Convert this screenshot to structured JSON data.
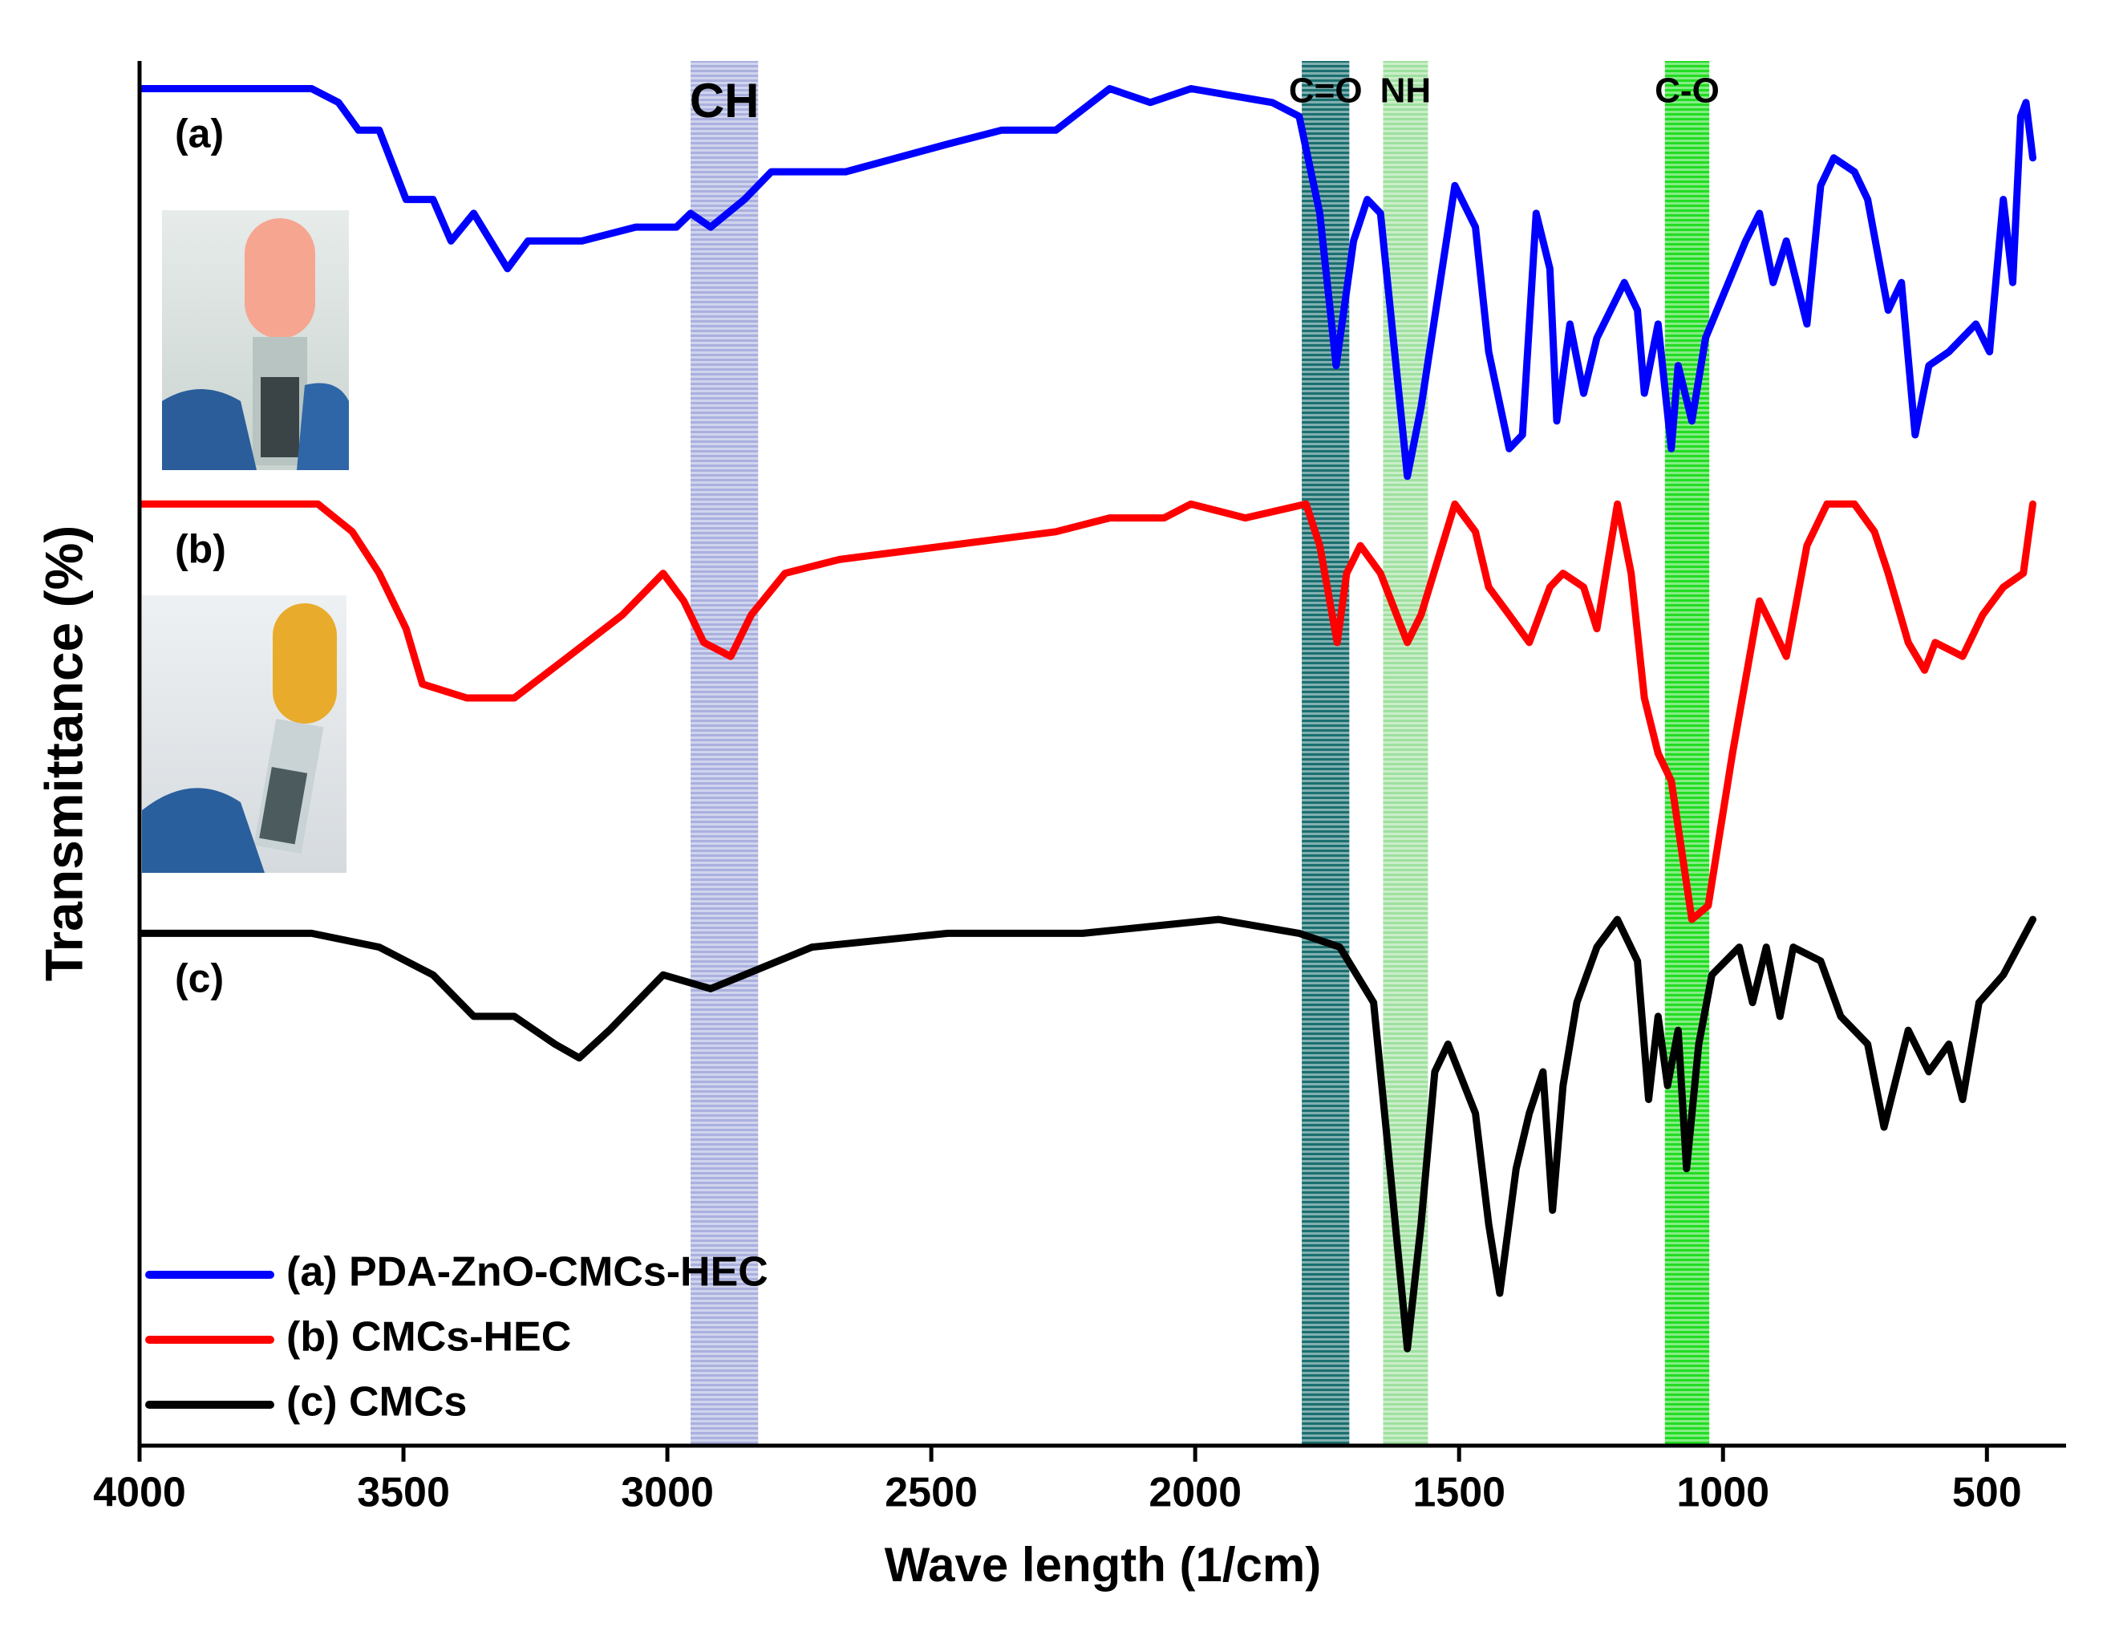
{
  "chart_data": {
    "type": "line",
    "xlabel": "Wave length (1/cm)",
    "ylabel": "Transmittance (%)",
    "xlim": [
      4000,
      350
    ],
    "ylim": [
      0,
      100
    ],
    "xticks": [
      4000,
      3500,
      3000,
      2500,
      2000,
      1500,
      1000,
      500
    ],
    "legend": "lower left",
    "panel_labels": [
      "(a)",
      "(b)",
      "(c)"
    ],
    "bands": [
      {
        "label": "CH",
        "x": [
          2956,
          2828
        ],
        "color": "#aab0de"
      },
      {
        "label": "C=O",
        "x": [
          1798,
          1708
        ],
        "color": "#1b6f70"
      },
      {
        "label": "NH",
        "x": [
          1644,
          1559
        ],
        "color": "#9fe09f"
      },
      {
        "label": "C-O",
        "x": [
          1110,
          1026
        ],
        "color": "#22dd22"
      }
    ],
    "series": [
      {
        "name": "(a) PDA-ZnO-CMCs-HEC",
        "color": "#0000ff",
        "x": [
          3995,
          3674,
          3623,
          3585,
          3546,
          3495,
          3444,
          3410,
          3367,
          3303,
          3264,
          3162,
          3060,
          2983,
          2956,
          2918,
          2854,
          2803,
          2726,
          2662,
          2469,
          2367,
          2264,
          2162,
          2085,
          2008,
          1854,
          1803,
          1764,
          1733,
          1700,
          1674,
          1649,
          1598,
          1572,
          1508,
          1469,
          1444,
          1405,
          1380,
          1354,
          1328,
          1315,
          1290,
          1264,
          1239,
          1187,
          1162,
          1149,
          1123,
          1098,
          1085,
          1059,
          1033,
          957,
          931,
          905,
          880,
          841,
          815,
          790,
          751,
          726,
          687,
          662,
          636,
          610,
          572,
          521,
          495,
          469,
          451,
          436,
          426,
          413
        ],
        "values": [
          98,
          98,
          97,
          95,
          95,
          90,
          90,
          87,
          89,
          85,
          87,
          87,
          88,
          88,
          89,
          88,
          90,
          92,
          92,
          92,
          94,
          95,
          95,
          98,
          97,
          98,
          97,
          96,
          89,
          78,
          87,
          90,
          89,
          70,
          75,
          91,
          88,
          79,
          72,
          73,
          89,
          85,
          74,
          81,
          76,
          80,
          84,
          82,
          76,
          81,
          72,
          78,
          74,
          80,
          87,
          89,
          84,
          87,
          81,
          91,
          93,
          92,
          90,
          82,
          84,
          73,
          78,
          79,
          81,
          79,
          90,
          84,
          96,
          97,
          93
        ]
      },
      {
        "name": "(b) CMCs-HEC",
        "color": "#ff0000",
        "x": [
          3995,
          3662,
          3597,
          3546,
          3495,
          3464,
          3380,
          3290,
          3187,
          3085,
          3008,
          2969,
          2931,
          2880,
          2841,
          2777,
          2674,
          2469,
          2264,
          2162,
          2059,
          2008,
          1905,
          1790,
          1764,
          1731,
          1713,
          1687,
          1649,
          1598,
          1572,
          1508,
          1469,
          1444,
          1405,
          1367,
          1328,
          1303,
          1264,
          1239,
          1200,
          1174,
          1149,
          1123,
          1098,
          1059,
          1028,
          982,
          931,
          905,
          880,
          841,
          803,
          751,
          713,
          687,
          649,
          618,
          598,
          546,
          508,
          469,
          431,
          413
        ],
        "values": [
          68,
          68,
          66,
          63,
          59,
          55,
          54,
          54,
          57,
          60,
          63,
          61,
          58,
          57,
          60,
          63,
          64,
          65,
          66,
          67,
          67,
          68,
          67,
          68,
          65,
          58,
          63,
          65,
          63,
          58,
          60,
          68,
          66,
          62,
          60,
          58,
          62,
          63,
          62,
          59,
          68,
          63,
          54,
          50,
          48,
          38,
          39,
          50,
          61,
          59,
          57,
          65,
          68,
          68,
          66,
          63,
          58,
          56,
          58,
          57,
          60,
          62,
          63,
          68
        ]
      },
      {
        "name": "(c) CMCs",
        "color": "#000000",
        "x": [
          3995,
          3803,
          3751,
          3674,
          3546,
          3444,
          3367,
          3290,
          3213,
          3167,
          3110,
          3008,
          2918,
          2854,
          2726,
          2469,
          2213,
          1956,
          1803,
          1726,
          1662,
          1636,
          1598,
          1572,
          1546,
          1521,
          1469,
          1444,
          1423,
          1392,
          1367,
          1341,
          1323,
          1303,
          1277,
          1239,
          1200,
          1162,
          1141,
          1123,
          1105,
          1085,
          1069,
          1046,
          1021,
          969,
          944,
          918,
          892,
          867,
          815,
          777,
          726,
          695,
          649,
          610,
          572,
          546,
          515,
          469,
          413
        ],
        "values": [
          37,
          37,
          37,
          37,
          36,
          34,
          31,
          31,
          29,
          28,
          30,
          34,
          33,
          34,
          36,
          37,
          37,
          38,
          37,
          36,
          32,
          22,
          7,
          16,
          27,
          29,
          24,
          16,
          11,
          20,
          24,
          27,
          17,
          26,
          32,
          36,
          38,
          35,
          25,
          31,
          26,
          30,
          20,
          29,
          34,
          36,
          32,
          36,
          31,
          36,
          35,
          31,
          29,
          23,
          30,
          27,
          29,
          25,
          32,
          34,
          38
        ]
      }
    ]
  }
}
